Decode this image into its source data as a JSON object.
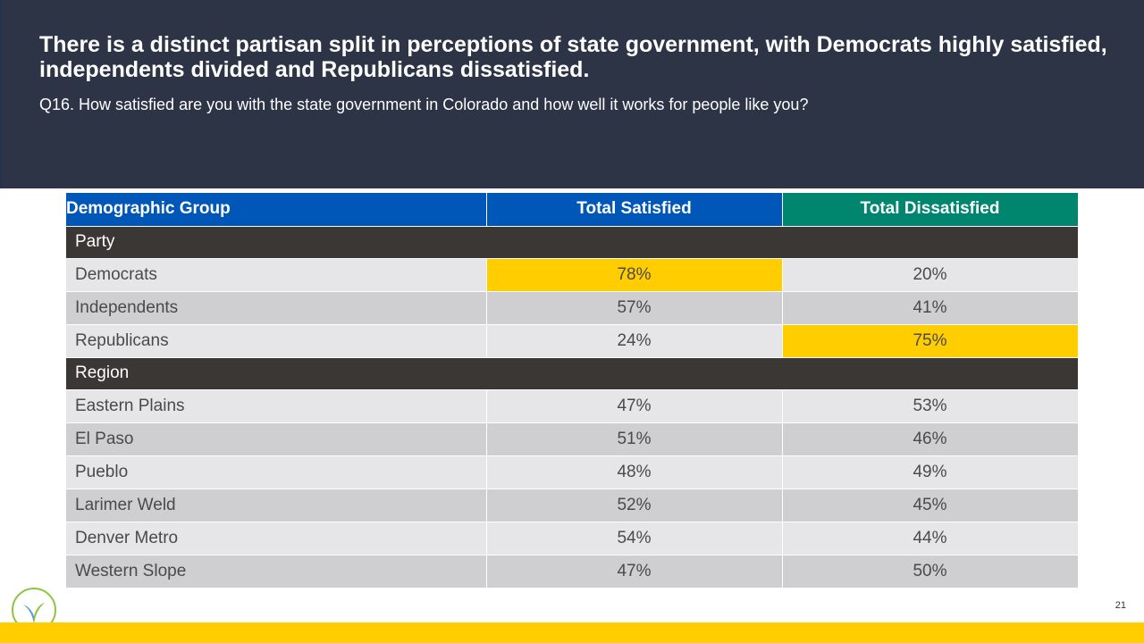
{
  "header": {
    "title": "There is a distinct partisan split in perceptions of state government, with Democrats highly satisfied, independents divided and Republicans dissatisfied.",
    "subtitle": "Q16. How satisfied are you with the state government in Colorado and how well it works for people like you?"
  },
  "table": {
    "columns": [
      "Demographic Group",
      "Total Satisfied",
      "Total Dissatisfied"
    ],
    "sections": [
      {
        "name": "Party",
        "rows": [
          {
            "group": "Democrats",
            "satisfied": "78%",
            "dissatisfied": "20%"
          },
          {
            "group": "Independents",
            "satisfied": "57%",
            "dissatisfied": "41%"
          },
          {
            "group": "Republicans",
            "satisfied": "24%",
            "dissatisfied": "75%"
          }
        ]
      },
      {
        "name": "Region",
        "rows": [
          {
            "group": "Eastern Plains",
            "satisfied": "47%",
            "dissatisfied": "53%"
          },
          {
            "group": "El Paso",
            "satisfied": "51%",
            "dissatisfied": "46%"
          },
          {
            "group": "Pueblo",
            "satisfied": "48%",
            "dissatisfied": "49%"
          },
          {
            "group": "Larimer Weld",
            "satisfied": "52%",
            "dissatisfied": "45%"
          },
          {
            "group": "Denver Metro",
            "satisfied": "54%",
            "dissatisfied": "44%"
          },
          {
            "group": "Western Slope",
            "satisfied": "47%",
            "dissatisfied": "50%"
          }
        ]
      }
    ]
  },
  "colors": {
    "header_bg": "#2c3446",
    "col_header_blue": "#0057b8",
    "col_header_green": "#00856f",
    "section_bg": "#3b3735",
    "highlight": "#ffcd00",
    "footer_bar": "#ffcd00"
  },
  "logo": {
    "icon": "leaf-logo-icon"
  },
  "page_number": "21"
}
